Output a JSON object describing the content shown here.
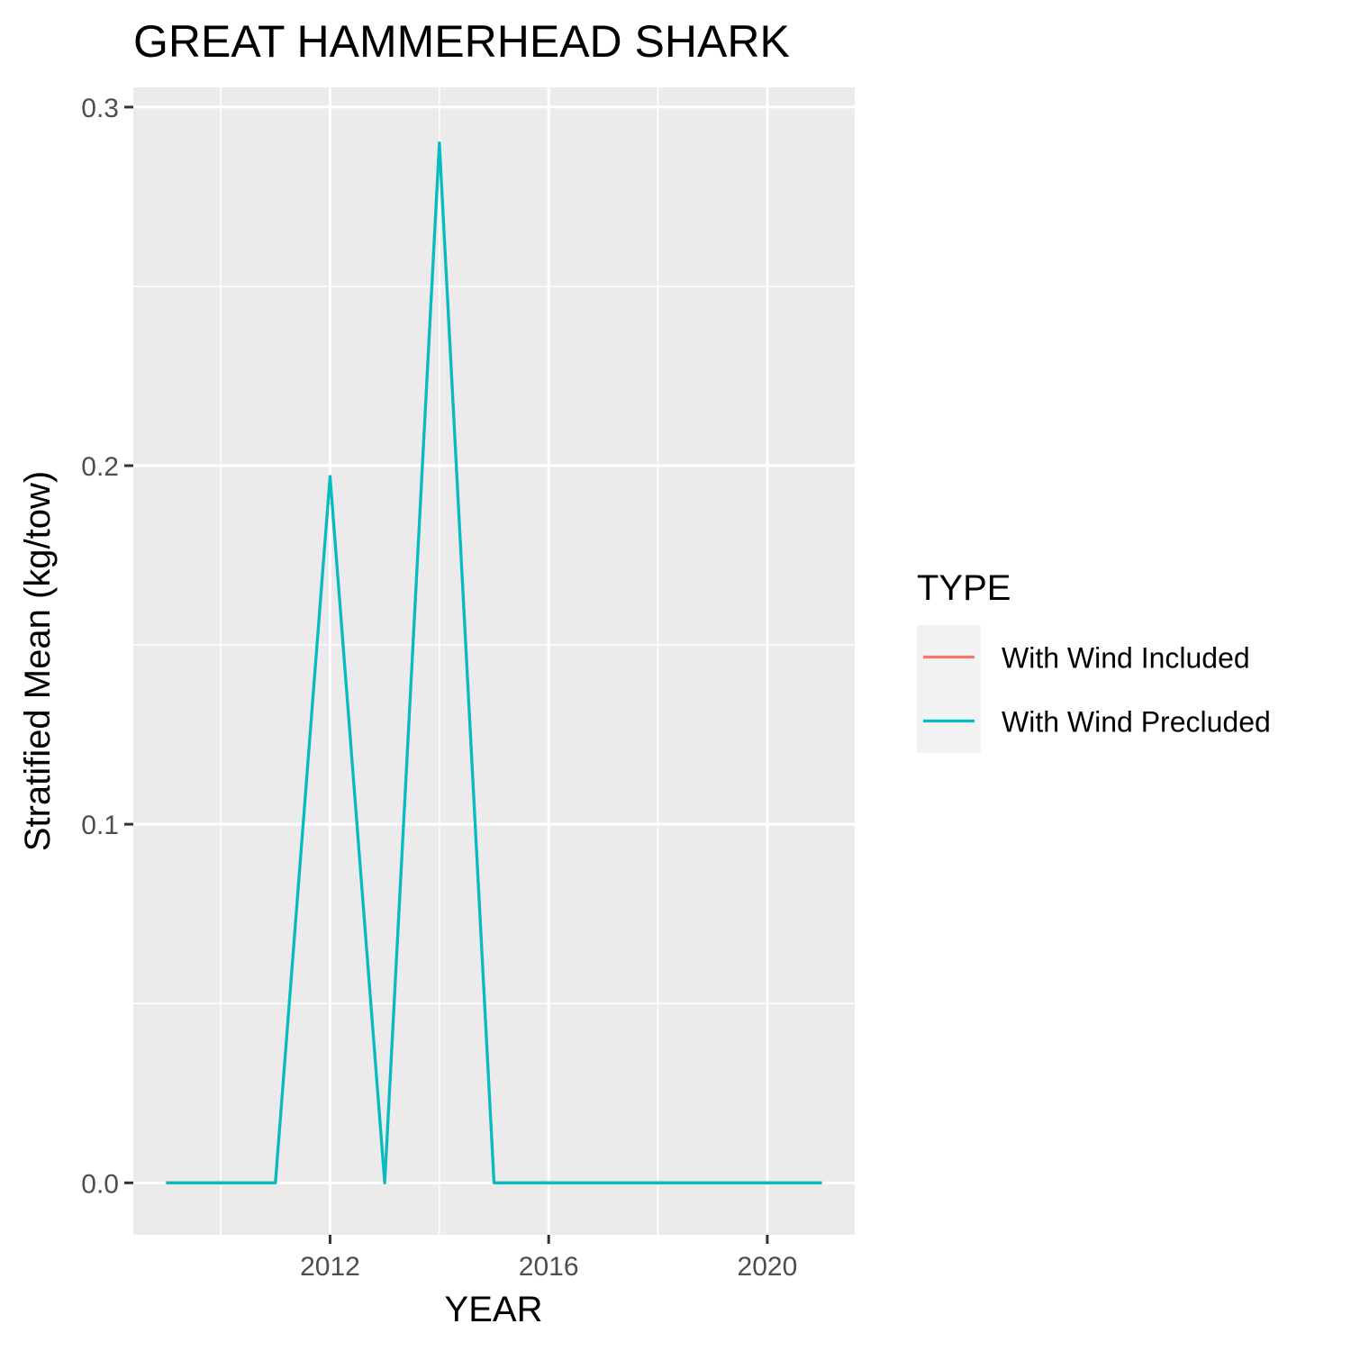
{
  "chart_data": {
    "type": "line",
    "title": "GREAT HAMMERHEAD SHARK",
    "xlabel": "YEAR",
    "ylabel": "Stratified Mean (kg/tow)",
    "x": [
      2009,
      2010,
      2011,
      2012,
      2013,
      2014,
      2015,
      2016,
      2017,
      2018,
      2019,
      2020,
      2021
    ],
    "series": [
      {
        "name": "With Wind Included",
        "color": "#F8766D",
        "values": [
          0,
          0,
          0,
          0.197,
          0,
          0.29,
          0,
          0,
          0,
          0,
          0,
          0,
          0
        ]
      },
      {
        "name": "With Wind Precluded",
        "color": "#00BFC4",
        "values": [
          0,
          0,
          0,
          0.197,
          0,
          0.29,
          0,
          0,
          0,
          0,
          0,
          0,
          0
        ]
      }
    ],
    "xlim": [
      2008.4,
      2021.6
    ],
    "ylim": [
      -0.0145,
      0.3055
    ],
    "x_ticks": [
      2012,
      2016,
      2020
    ],
    "x_tick_labels": [
      "2012",
      "2016",
      "2020"
    ],
    "x_minor_ticks": [
      2010,
      2014,
      2018
    ],
    "y_ticks": [
      0.0,
      0.1,
      0.2,
      0.3
    ],
    "y_tick_labels": [
      "0.0",
      "0.1",
      "0.2",
      "0.3"
    ],
    "y_minor_ticks": [
      0.05,
      0.15,
      0.25
    ],
    "grid": true,
    "panel_color": "#EBEBEB",
    "legend": {
      "title": "TYPE",
      "placement": "right",
      "key_color": "#F2F2F2"
    }
  }
}
